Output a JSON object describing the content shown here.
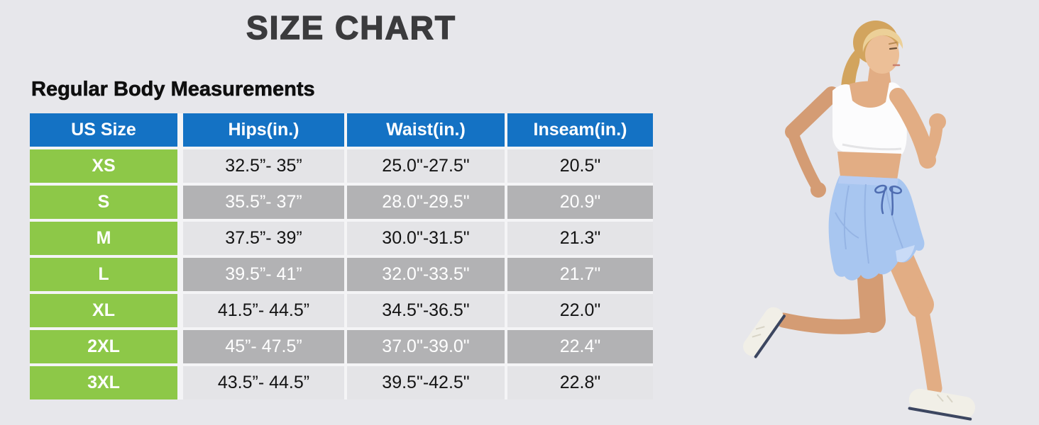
{
  "title": "SIZE CHART",
  "subtitle": "Regular Body Measurements",
  "chart_data": {
    "type": "table",
    "columns": [
      "US Size",
      "Hips(in.)",
      "Waist(in.)",
      "Inseam(in.)"
    ],
    "rows": [
      {
        "size": "XS",
        "hips": "32.5”- 35”",
        "waist": "25.0\"-27.5\"",
        "inseam": "20.5\""
      },
      {
        "size": "S",
        "hips": "35.5”- 37”",
        "waist": "28.0\"-29.5\"",
        "inseam": "20.9\""
      },
      {
        "size": "M",
        "hips": "37.5”- 39”",
        "waist": "30.0\"-31.5\"",
        "inseam": "21.3\""
      },
      {
        "size": "L",
        "hips": "39.5”- 41”",
        "waist": "32.0\"-33.5\"",
        "inseam": "21.7\""
      },
      {
        "size": "XL",
        "hips": "41.5”- 44.5”",
        "waist": "34.5\"-36.5\"",
        "inseam": "22.0\""
      },
      {
        "size": "2XL",
        "hips": "45”- 47.5”",
        "waist": "37.0\"-39.0\"",
        "inseam": "22.4\""
      },
      {
        "size": "3XL",
        "hips": "43.5”- 44.5”",
        "waist": "39.5\"-42.5\"",
        "inseam": "22.8\""
      }
    ],
    "shaded_row_sizes": [
      "S",
      "L",
      "2XL"
    ]
  },
  "illustration": {
    "alt": "Woman with blonde ponytail running to the right, wearing a white sports bra, light blue drawstring shorts and white sneakers"
  },
  "colors": {
    "pageBg": "#e7e7eb",
    "headerBlue": "#1472c4",
    "sizeGreen": "#8dc848",
    "shadedRowGray": "#b2b2b4",
    "lightRow": "#e4e4e7",
    "titleColor": "#3b3b3d",
    "shortsBlue": "#a8c6f0",
    "braWhite": "#fcfcfd",
    "skin": "#e2ad84",
    "hairBlonde": "#d2a45e"
  }
}
